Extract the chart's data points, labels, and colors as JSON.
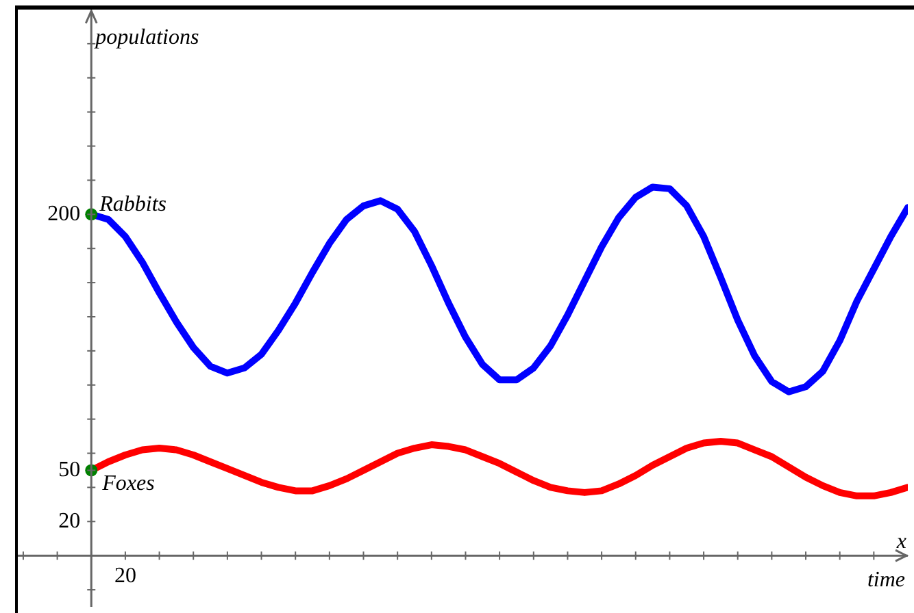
{
  "chart_data": {
    "type": "line",
    "xlabel": "time",
    "ylabel": "populations",
    "annotations": [
      "x",
      "20"
    ],
    "categories": [
      null,
      null,
      null,
      null,
      null,
      null,
      null,
      null,
      null,
      null,
      null,
      null,
      null,
      null,
      null,
      null,
      null,
      null,
      null,
      null,
      null,
      null,
      null,
      null,
      null,
      null,
      null,
      null,
      null,
      null,
      null,
      null,
      null,
      null,
      null,
      null,
      null,
      null,
      null,
      null,
      null,
      null,
      null,
      null,
      null,
      null,
      null,
      null,
      null
    ],
    "ylim": [
      -30,
      320
    ],
    "yticks": [
      {
        "value": -20,
        "label": null
      },
      {
        "value": 20,
        "label": "20"
      },
      {
        "value": 40,
        "label": null
      },
      {
        "value": 50,
        "label": "50"
      },
      {
        "value": 60,
        "label": null
      },
      {
        "value": 80,
        "label": null
      },
      {
        "value": 100,
        "label": null
      },
      {
        "value": 120,
        "label": null
      },
      {
        "value": 140,
        "label": null
      },
      {
        "value": 160,
        "label": null
      },
      {
        "value": 180,
        "label": null
      },
      {
        "value": 200,
        "label": "200"
      },
      {
        "value": 220,
        "label": null
      },
      {
        "value": 240,
        "label": null
      },
      {
        "value": 260,
        "label": null
      },
      {
        "value": 280,
        "label": null
      },
      {
        "value": 300,
        "label": null
      }
    ],
    "legend": false,
    "marker": "none",
    "line_style": "solid",
    "series": [
      {
        "name": "Rabbits",
        "color": "#0000ff",
        "values": [
          200,
          197,
          187,
          172,
          154,
          137,
          122,
          111,
          107,
          110,
          118,
          132,
          148,
          166,
          183,
          197,
          205,
          208,
          203,
          190,
          170,
          148,
          128,
          112,
          103,
          103,
          110,
          123,
          141,
          161,
          181,
          198,
          210,
          216,
          215,
          205,
          187,
          163,
          138,
          117,
          102,
          96,
          99,
          108,
          126,
          149,
          168,
          187,
          204
        ]
      },
      {
        "name": "Foxes",
        "color": "#ff0000",
        "values": [
          50,
          55,
          59,
          62,
          63,
          62,
          59,
          55,
          51,
          47,
          43,
          40,
          38,
          38,
          41,
          45,
          50,
          55,
          60,
          63,
          65,
          64,
          62,
          58,
          54,
          49,
          44,
          40,
          38,
          37,
          38,
          42,
          47,
          53,
          58,
          63,
          66,
          67,
          66,
          62,
          58,
          52,
          46,
          41,
          37,
          35,
          35,
          37,
          40
        ]
      },
      {
        "type": "scatter",
        "color": "#008000",
        "marker": "circle",
        "values": [
          200,
          null,
          null,
          null,
          null,
          null,
          null,
          null,
          null,
          null,
          null,
          null,
          null,
          null,
          null,
          null,
          null,
          null,
          null,
          null,
          null,
          null,
          null,
          null,
          null,
          null,
          null,
          null,
          null,
          null,
          null,
          null,
          null,
          null,
          null,
          null,
          null,
          null,
          null,
          null,
          null,
          null,
          null,
          null,
          null,
          null,
          null,
          null,
          null
        ]
      },
      {
        "type": "scatter",
        "color": "#008000",
        "marker": "circle",
        "values": [
          50,
          null,
          null,
          null,
          null,
          null,
          null,
          null,
          null,
          null,
          null,
          null,
          null,
          null,
          null,
          null,
          null,
          null,
          null,
          null,
          null,
          null,
          null,
          null,
          null,
          null,
          null,
          null,
          null,
          null,
          null,
          null,
          null,
          null,
          null,
          null,
          null,
          null,
          null,
          null,
          null,
          null,
          null,
          null,
          null,
          null,
          null,
          null,
          null
        ]
      }
    ]
  }
}
